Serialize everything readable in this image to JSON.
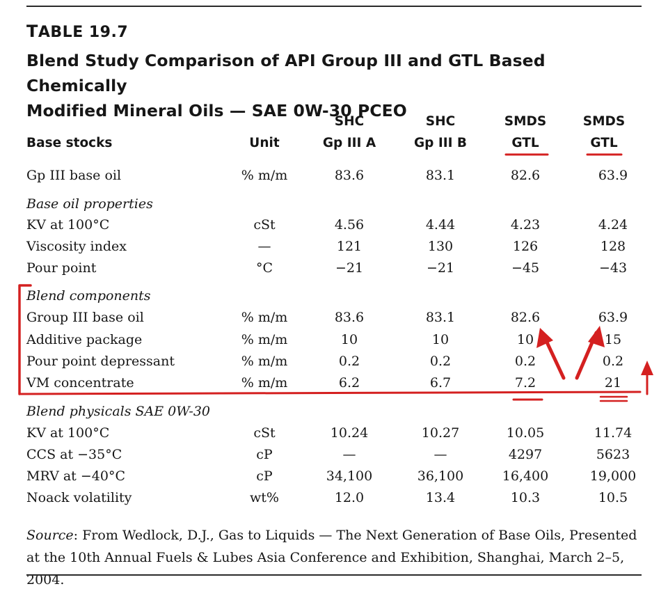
{
  "caption": {
    "label": "Table 19.7",
    "title_line1": "Blend Study Comparison of API Group III and GTL Based Chemically",
    "title_line2": "Modified Mineral Oils — SAE 0W-30 PCEO"
  },
  "columns": {
    "base_stocks": "Base stocks",
    "unit": "Unit",
    "col_a": {
      "line1": "SHC",
      "line2": "Gp III A"
    },
    "col_b": {
      "line1": "SHC",
      "line2": "Gp III B"
    },
    "col_c": {
      "line1": "SMDS",
      "line2": "GTL"
    },
    "col_d": {
      "line1": "SMDS",
      "line2": "GTL"
    }
  },
  "rows": [
    {
      "label": "Gp III base oil",
      "unit": "% m/m",
      "a": "83.6",
      "b": "83.1",
      "c": "82.6",
      "d": "63.9"
    },
    {
      "section": "Base oil properties"
    },
    {
      "label": "KV at 100°C",
      "unit": "cSt",
      "a": "4.56",
      "b": "4.44",
      "c": "4.23",
      "d": "4.24"
    },
    {
      "label": "Viscosity index",
      "unit": "—",
      "a": "121",
      "b": "130",
      "c": "126",
      "d": "128"
    },
    {
      "label": "Pour point",
      "unit": "°C",
      "a": "−21",
      "b": "−21",
      "c": "−45",
      "d": "−43"
    },
    {
      "section": "Blend components"
    },
    {
      "label": "Group III base oil",
      "unit": "% m/m",
      "a": "83.6",
      "b": "83.1",
      "c": "82.6",
      "d": "63.9"
    },
    {
      "label": "Additive package",
      "unit": "% m/m",
      "a": "10",
      "b": "10",
      "c": "10",
      "d": "15"
    },
    {
      "label": "Pour point depressant",
      "unit": "% m/m",
      "a": "0.2",
      "b": "0.2",
      "c": "0.2",
      "d": "0.2"
    },
    {
      "label": "VM concentrate",
      "unit": "% m/m",
      "a": "6.2",
      "b": "6.7",
      "c": "7.2",
      "d": "21"
    },
    {
      "section": "Blend physicals SAE 0W-30"
    },
    {
      "label": "KV at 100°C",
      "unit": "cSt",
      "a": "10.24",
      "b": "10.27",
      "c": "10.05",
      "d": "11.74"
    },
    {
      "label": "CCS at −35°C",
      "unit": "cP",
      "a": "—",
      "b": "—",
      "c": "4297",
      "d": "5623"
    },
    {
      "label": "MRV at −40°C",
      "unit": "cP",
      "a": "34,100",
      "b": "36,100",
      "c": "16,400",
      "d": "19,000"
    },
    {
      "label": "Noack volatility",
      "unit": "wt%",
      "a": "12.0",
      "b": "13.4",
      "c": "10.3",
      "d": "10.5"
    }
  ],
  "source": {
    "prefix": "Source",
    "text": ": From Wedlock, D.J., Gas to Liquids — The Next Generation of Base Oils, Presented at the 10th Annual Fuels & Lubes Asia Conference and Exhibition, Shanghai, March 2–5, 2004."
  },
  "colors": {
    "text": "#161616",
    "rule": "#2a2a2a",
    "annotation": "#d42020"
  }
}
